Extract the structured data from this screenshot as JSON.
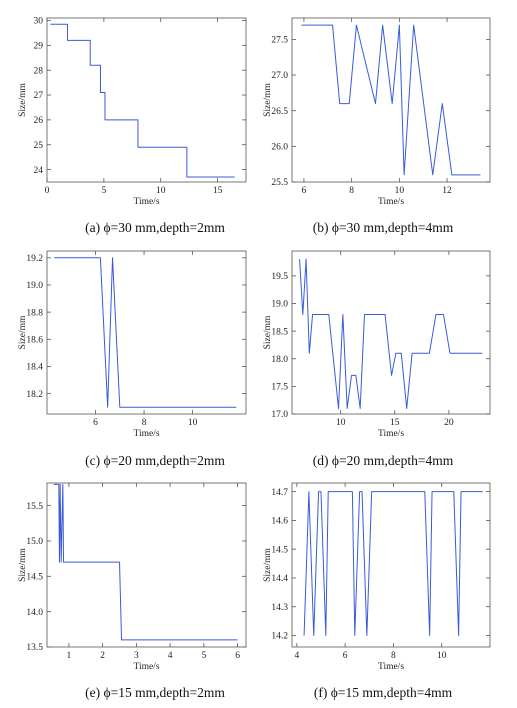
{
  "colors": {
    "line": "#3a5bd9",
    "axis": "#555555"
  },
  "chart_data": [
    {
      "type": "line",
      "caption": "(a) ϕ=30 mm,depth=2mm",
      "xlabel": "Time/s",
      "ylabel": "Size/mm",
      "xlim": [
        0,
        17.5
      ],
      "ylim": [
        23.5,
        30.1
      ],
      "xticks": [
        0,
        5,
        10,
        15
      ],
      "xtick_labels": [
        "0",
        "5",
        "10",
        "15"
      ],
      "yticks": [
        24,
        25,
        26,
        27,
        28,
        29,
        30
      ],
      "ytick_labels": [
        "24",
        "25",
        "26",
        "27",
        "28",
        "29",
        "30"
      ],
      "x": [
        0.3,
        1.8,
        1.8,
        3.8,
        3.8,
        4.7,
        4.7,
        5.1,
        5.1,
        8.0,
        8.0,
        8.4,
        8.4,
        12.3,
        12.3,
        16.5
      ],
      "y": [
        29.85,
        29.85,
        29.2,
        29.2,
        28.2,
        28.2,
        27.1,
        27.1,
        26.0,
        26.0,
        24.9,
        24.9,
        24.9,
        24.9,
        23.7,
        23.7
      ]
    },
    {
      "type": "line",
      "caption": "(b) ϕ=30 mm,depth=4mm",
      "xlabel": "Time/s",
      "ylabel": "Size/mm",
      "xlim": [
        5.5,
        13.8
      ],
      "ylim": [
        25.5,
        27.8
      ],
      "xticks": [
        6,
        8,
        10,
        12
      ],
      "xtick_labels": [
        "6",
        "8",
        "10",
        "12"
      ],
      "yticks": [
        25.5,
        26.0,
        26.5,
        27.0,
        27.5
      ],
      "ytick_labels": [
        "25.5",
        "26.0",
        "26.5",
        "27.0",
        "27.5"
      ],
      "x": [
        5.9,
        7.2,
        7.5,
        7.9,
        8.2,
        9.0,
        9.3,
        9.7,
        10.0,
        10.2,
        10.6,
        11.4,
        11.8,
        12.2,
        13.4
      ],
      "y": [
        27.7,
        27.7,
        26.6,
        26.6,
        27.7,
        26.6,
        27.7,
        26.6,
        27.7,
        25.6,
        27.7,
        25.6,
        26.6,
        25.6,
        25.6
      ]
    },
    {
      "type": "line",
      "caption": "(c) ϕ=20 mm,depth=2mm",
      "xlabel": "Time/s",
      "ylabel": "Size/mm",
      "xlim": [
        4.0,
        12.2
      ],
      "ylim": [
        18.05,
        19.25
      ],
      "xticks": [
        6,
        8,
        10
      ],
      "xtick_labels": [
        "6",
        "8",
        "10"
      ],
      "yticks": [
        18.2,
        18.4,
        18.6,
        18.8,
        19.0,
        19.2
      ],
      "ytick_labels": [
        "18.2",
        "18.4",
        "18.6",
        "18.8",
        "19.0",
        "19.2"
      ],
      "x": [
        4.3,
        6.2,
        6.5,
        6.7,
        7.0,
        11.8
      ],
      "y": [
        19.2,
        19.2,
        18.1,
        19.2,
        18.1,
        18.1
      ]
    },
    {
      "type": "line",
      "caption": "(d) ϕ=20 mm,depth=4mm",
      "xlabel": "Time/s",
      "ylabel": "Size/mm",
      "xlim": [
        5.5,
        23.8
      ],
      "ylim": [
        17.0,
        19.95
      ],
      "xticks": [
        10,
        15,
        20
      ],
      "xtick_labels": [
        "10",
        "15",
        "20"
      ],
      "yticks": [
        17.0,
        17.5,
        18.0,
        18.5,
        19.0,
        19.5
      ],
      "ytick_labels": [
        "17.0",
        "17.5",
        "18.0",
        "18.5",
        "19.0",
        "19.5"
      ],
      "x": [
        6.2,
        6.5,
        6.8,
        7.1,
        7.4,
        8.9,
        9.8,
        10.2,
        10.6,
        11.0,
        11.4,
        11.8,
        12.2,
        12.5,
        14.1,
        14.7,
        15.1,
        15.6,
        16.1,
        16.6,
        18.2,
        18.8,
        19.5,
        20.1,
        23.1
      ],
      "y": [
        19.8,
        18.8,
        19.8,
        18.1,
        18.8,
        18.8,
        17.1,
        18.8,
        17.1,
        17.7,
        17.7,
        17.1,
        18.8,
        18.8,
        18.8,
        17.7,
        18.1,
        18.1,
        17.1,
        18.1,
        18.1,
        18.8,
        18.8,
        18.1,
        18.1
      ]
    },
    {
      "type": "line",
      "caption": "(e) ϕ=15 mm,depth=2mm",
      "xlabel": "Time/s",
      "ylabel": "Size/mm",
      "xlim": [
        0.35,
        6.25
      ],
      "ylim": [
        13.5,
        15.82
      ],
      "xticks": [
        1,
        2,
        3,
        4,
        5,
        6
      ],
      "xtick_labels": [
        "1",
        "2",
        "3",
        "4",
        "5",
        "6"
      ],
      "yticks": [
        13.5,
        14.0,
        14.5,
        15.0,
        15.5
      ],
      "ytick_labels": [
        "13.5",
        "14.0",
        "14.5",
        "15.0",
        "15.5"
      ],
      "x": [
        0.55,
        0.7,
        0.72,
        0.74,
        0.77,
        0.82,
        0.84,
        2.5,
        2.56,
        6.0
      ],
      "y": [
        15.8,
        15.8,
        14.7,
        15.8,
        14.7,
        15.8,
        14.7,
        14.7,
        13.6,
        13.6
      ]
    },
    {
      "type": "line",
      "caption": "(f) ϕ=15 mm,depth=4mm",
      "xlabel": "Time/s",
      "ylabel": "Size/mm",
      "xlim": [
        3.8,
        12.0
      ],
      "ylim": [
        14.16,
        14.73
      ],
      "xticks": [
        4,
        6,
        8,
        10
      ],
      "xtick_labels": [
        "4",
        "6",
        "8",
        "10"
      ],
      "yticks": [
        14.2,
        14.3,
        14.4,
        14.5,
        14.6,
        14.7
      ],
      "ytick_labels": [
        "14.2",
        "14.3",
        "14.4",
        "14.5",
        "14.6",
        "14.7"
      ],
      "x": [
        4.3,
        4.5,
        4.7,
        4.9,
        5.0,
        5.2,
        5.3,
        6.3,
        6.4,
        6.6,
        6.7,
        6.9,
        7.1,
        7.2,
        9.3,
        9.5,
        9.6,
        10.5,
        10.7,
        10.8,
        11.4,
        11.7
      ],
      "y": [
        14.2,
        14.7,
        14.2,
        14.7,
        14.7,
        14.2,
        14.7,
        14.7,
        14.2,
        14.7,
        14.7,
        14.2,
        14.7,
        14.7,
        14.7,
        14.2,
        14.7,
        14.7,
        14.2,
        14.7,
        14.7,
        14.7
      ]
    }
  ]
}
